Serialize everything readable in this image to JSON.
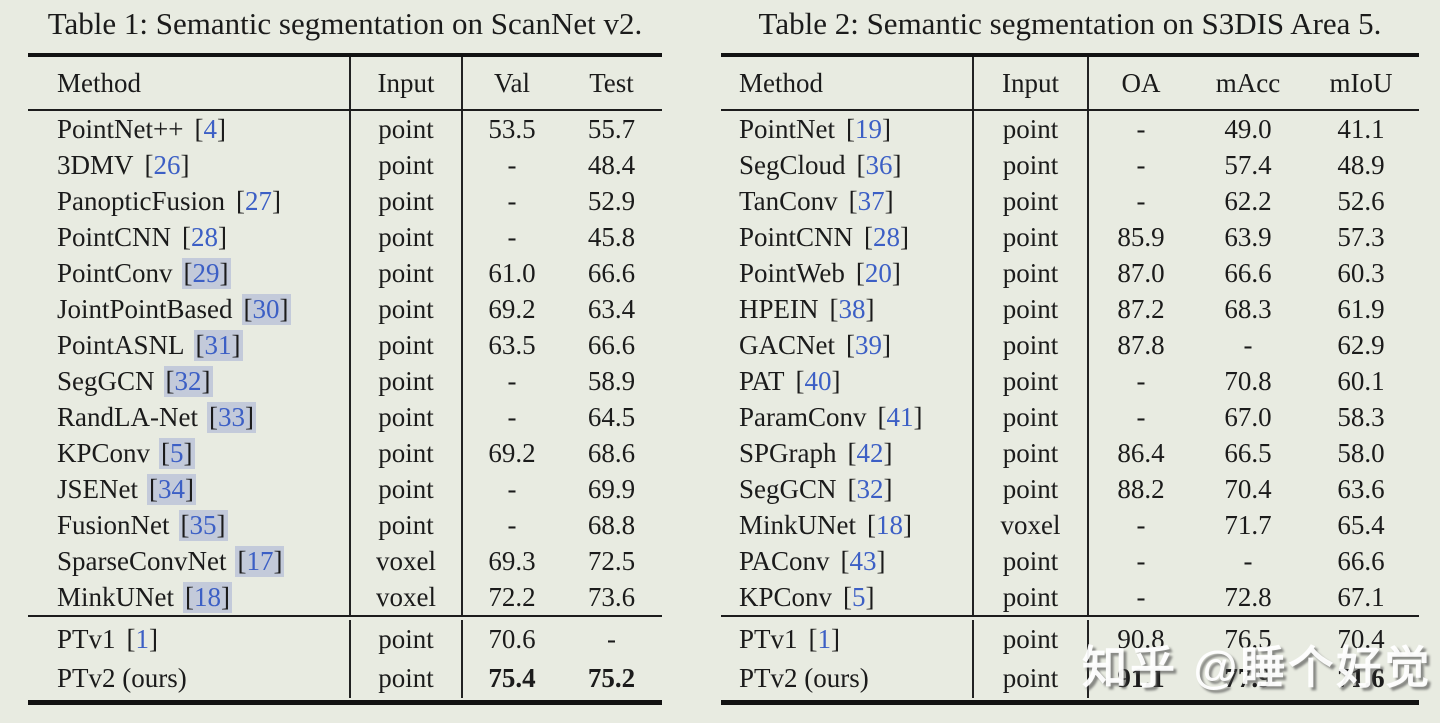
{
  "watermark": {
    "text": "知乎 @睡个好觉"
  },
  "colors": {
    "background": "#e8ebe1",
    "text": "#1b1b1b",
    "citation_blue": "#3c5fc5",
    "citation_box": "#c3cada",
    "rule": "#121212"
  },
  "tables": [
    {
      "caption": "Table 1: Semantic segmentation on ScanNet v2.",
      "columns": [
        "Method",
        "Input",
        "Val",
        "Test"
      ],
      "rows": [
        {
          "method": "PointNet++",
          "cite": "[4]",
          "cite_boxed": false,
          "input": "point",
          "values": [
            "53.5",
            "55.7"
          ]
        },
        {
          "method": "3DMV",
          "cite": "[26]",
          "cite_boxed": false,
          "input": "point",
          "values": [
            "-",
            "48.4"
          ]
        },
        {
          "method": "PanopticFusion",
          "cite": "[27]",
          "cite_boxed": false,
          "input": "point",
          "values": [
            "-",
            "52.9"
          ]
        },
        {
          "method": "PointCNN",
          "cite": "[28]",
          "cite_boxed": false,
          "input": "point",
          "values": [
            "-",
            "45.8"
          ]
        },
        {
          "method": "PointConv",
          "cite": "[29]",
          "cite_boxed": true,
          "input": "point",
          "values": [
            "61.0",
            "66.6"
          ]
        },
        {
          "method": "JointPointBased",
          "cite": "[30]",
          "cite_boxed": true,
          "input": "point",
          "values": [
            "69.2",
            "63.4"
          ]
        },
        {
          "method": "PointASNL",
          "cite": "[31]",
          "cite_boxed": true,
          "input": "point",
          "values": [
            "63.5",
            "66.6"
          ]
        },
        {
          "method": "SegGCN",
          "cite": "[32]",
          "cite_boxed": true,
          "input": "point",
          "values": [
            "-",
            "58.9"
          ]
        },
        {
          "method": "RandLA-Net",
          "cite": "[33]",
          "cite_boxed": true,
          "input": "point",
          "values": [
            "-",
            "64.5"
          ]
        },
        {
          "method": "KPConv",
          "cite": "[5]",
          "cite_boxed": true,
          "input": "point",
          "values": [
            "69.2",
            "68.6"
          ]
        },
        {
          "method": "JSENet",
          "cite": "[34]",
          "cite_boxed": true,
          "input": "point",
          "values": [
            "-",
            "69.9"
          ]
        },
        {
          "method": "FusionNet",
          "cite": "[35]",
          "cite_boxed": true,
          "input": "point",
          "values": [
            "-",
            "68.8"
          ]
        },
        {
          "method": "SparseConvNet",
          "cite": "[17]",
          "cite_boxed": true,
          "input": "voxel",
          "values": [
            "69.3",
            "72.5"
          ]
        },
        {
          "method": "MinkUNet",
          "cite": "[18]",
          "cite_boxed": true,
          "input": "voxel",
          "values": [
            "72.2",
            "73.6"
          ]
        }
      ],
      "footer_rows": [
        {
          "method": "PTv1",
          "cite": "[1]",
          "cite_boxed": false,
          "input": "point",
          "values": [
            "70.6",
            "-"
          ],
          "bold_values": false
        },
        {
          "method": "PTv2 (ours)",
          "cite": null,
          "cite_boxed": false,
          "input": "point",
          "values": [
            "75.4",
            "75.2"
          ],
          "bold_values": true
        }
      ]
    },
    {
      "caption": "Table 2: Semantic segmentation on S3DIS Area 5.",
      "columns": [
        "Method",
        "Input",
        "OA",
        "mAcc",
        "mIoU"
      ],
      "rows": [
        {
          "method": "PointNet",
          "cite": "[19]",
          "cite_boxed": false,
          "input": "point",
          "values": [
            "-",
            "49.0",
            "41.1"
          ]
        },
        {
          "method": "SegCloud",
          "cite": "[36]",
          "cite_boxed": false,
          "input": "point",
          "values": [
            "-",
            "57.4",
            "48.9"
          ]
        },
        {
          "method": "TanConv",
          "cite": "[37]",
          "cite_boxed": false,
          "input": "point",
          "values": [
            "-",
            "62.2",
            "52.6"
          ]
        },
        {
          "method": "PointCNN",
          "cite": "[28]",
          "cite_boxed": false,
          "input": "point",
          "values": [
            "85.9",
            "63.9",
            "57.3"
          ]
        },
        {
          "method": "PointWeb",
          "cite": "[20]",
          "cite_boxed": false,
          "input": "point",
          "values": [
            "87.0",
            "66.6",
            "60.3"
          ]
        },
        {
          "method": "HPEIN",
          "cite": "[38]",
          "cite_boxed": false,
          "input": "point",
          "values": [
            "87.2",
            "68.3",
            "61.9"
          ]
        },
        {
          "method": "GACNet",
          "cite": "[39]",
          "cite_boxed": false,
          "input": "point",
          "values": [
            "87.8",
            "-",
            "62.9"
          ]
        },
        {
          "method": "PAT",
          "cite": "[40]",
          "cite_boxed": false,
          "input": "point",
          "values": [
            "-",
            "70.8",
            "60.1"
          ]
        },
        {
          "method": "ParamConv",
          "cite": "[41]",
          "cite_boxed": false,
          "input": "point",
          "values": [
            "-",
            "67.0",
            "58.3"
          ]
        },
        {
          "method": "SPGraph",
          "cite": "[42]",
          "cite_boxed": false,
          "input": "point",
          "values": [
            "86.4",
            "66.5",
            "58.0"
          ]
        },
        {
          "method": "SegGCN",
          "cite": "[32]",
          "cite_boxed": false,
          "input": "point",
          "values": [
            "88.2",
            "70.4",
            "63.6"
          ]
        },
        {
          "method": "MinkUNet",
          "cite": "[18]",
          "cite_boxed": false,
          "input": "voxel",
          "values": [
            "-",
            "71.7",
            "65.4"
          ]
        },
        {
          "method": "PAConv",
          "cite": "[43]",
          "cite_boxed": false,
          "input": "point",
          "values": [
            "-",
            "-",
            "66.6"
          ]
        },
        {
          "method": "KPConv",
          "cite": "[5]",
          "cite_boxed": false,
          "input": "point",
          "values": [
            "-",
            "72.8",
            "67.1"
          ]
        }
      ],
      "footer_rows": [
        {
          "method": "PTv1",
          "cite": "[1]",
          "cite_boxed": false,
          "input": "point",
          "values": [
            "90.8",
            "76.5",
            "70.4"
          ],
          "bold_values": false
        },
        {
          "method": "PTv2 (ours)",
          "cite": null,
          "cite_boxed": false,
          "input": "point",
          "values": [
            "91.1",
            "77.9",
            "71.6"
          ],
          "bold_values": true
        }
      ]
    }
  ]
}
